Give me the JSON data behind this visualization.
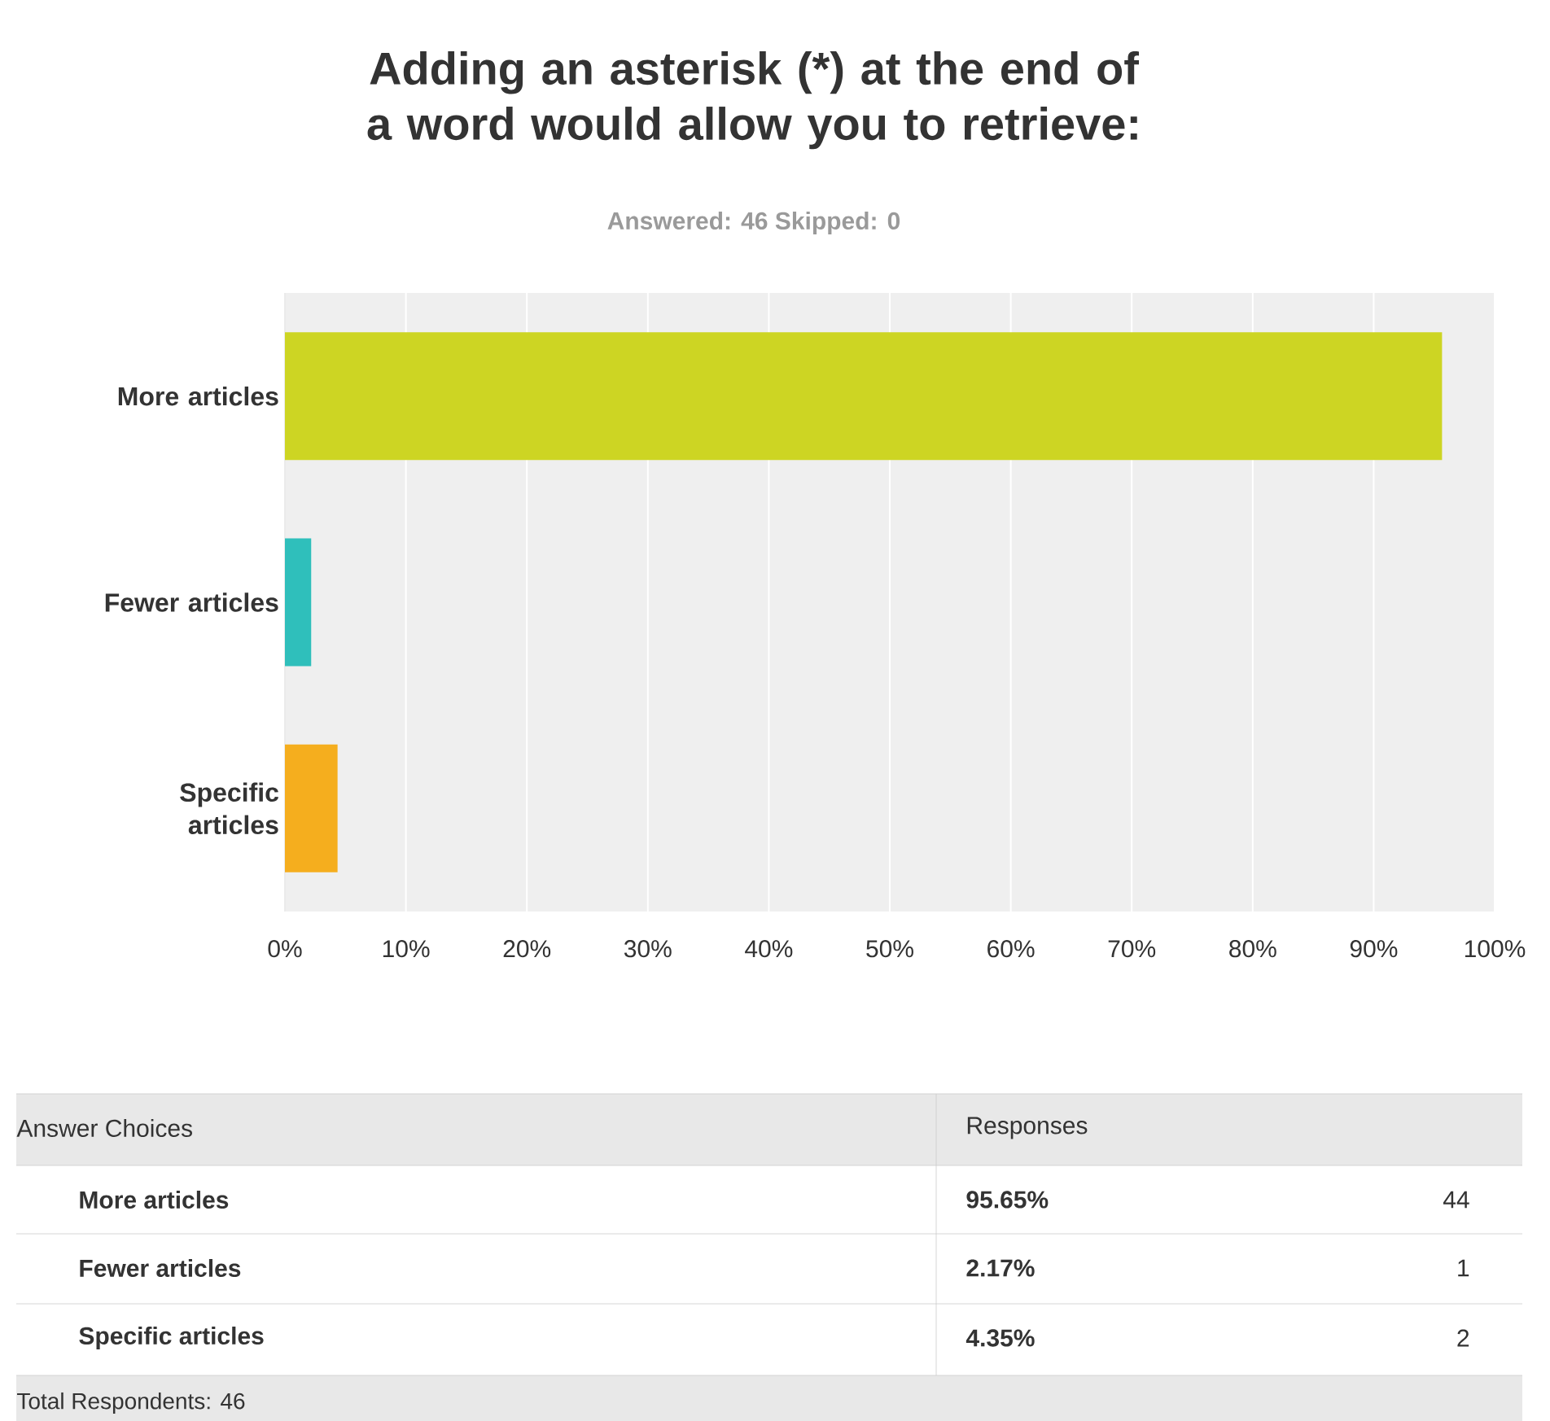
{
  "chart_data": {
    "type": "bar",
    "orientation": "horizontal",
    "title": "Adding an asterisk (*) at the end of a word would allow you to retrieve:",
    "subtitle": "Answered: 46    Skipped: 0",
    "categories": [
      "More articles",
      "Fewer articles",
      "Specific articles"
    ],
    "values": [
      95.65,
      2.17,
      4.35
    ],
    "colors": [
      "#cdd523",
      "#2fbfbb",
      "#f5ae1e"
    ],
    "xlim": [
      0,
      100
    ],
    "xticks": [
      {
        "value": 0,
        "label": "0%"
      },
      {
        "value": 10,
        "label": "10%"
      },
      {
        "value": 20,
        "label": "20%"
      },
      {
        "value": 30,
        "label": "30%"
      },
      {
        "value": 40,
        "label": "40%"
      },
      {
        "value": 50,
        "label": "50%"
      },
      {
        "value": 60,
        "label": "60%"
      },
      {
        "value": 70,
        "label": "70%"
      },
      {
        "value": 80,
        "label": "80%"
      },
      {
        "value": 90,
        "label": "90%"
      },
      {
        "value": 100,
        "label": "100%"
      }
    ],
    "grid": "x",
    "annotations": [
      "Answer Choices",
      "Responses",
      "95.65%",
      "44",
      "2.17%",
      "1",
      "4.35%",
      "2",
      "Total Respondents: 46"
    ]
  }
}
